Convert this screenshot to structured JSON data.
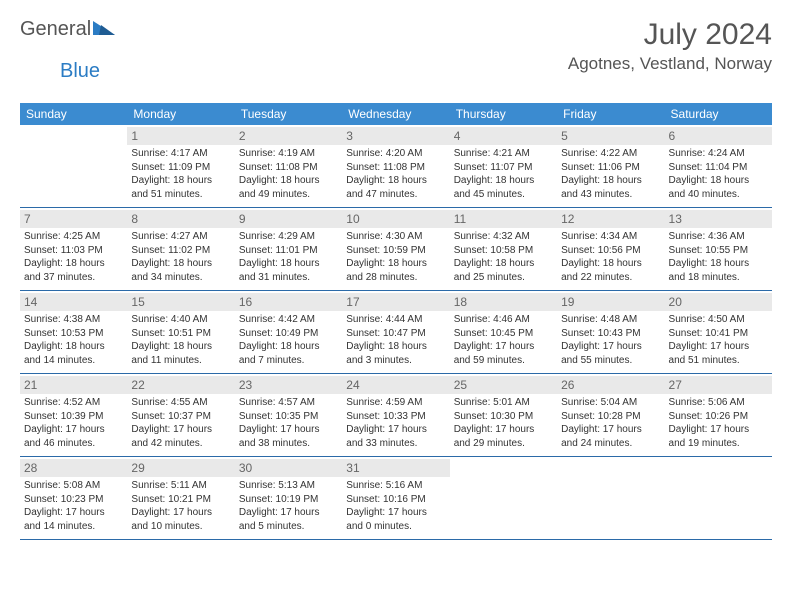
{
  "brand": {
    "name1": "General",
    "name2": "Blue"
  },
  "title": "July 2024",
  "location": "Agotnes, Vestland, Norway",
  "colors": {
    "header_bg": "#3b8bd0",
    "header_text": "#ffffff",
    "divider": "#2b6aa8",
    "daynum_bg": "#e9e9e9",
    "daynum_text": "#666666",
    "body_text": "#333333",
    "title_text": "#555555",
    "logo_blue": "#2b7cc4"
  },
  "days_of_week": [
    "Sunday",
    "Monday",
    "Tuesday",
    "Wednesday",
    "Thursday",
    "Friday",
    "Saturday"
  ],
  "weeks": [
    [
      {
        "n": "",
        "sr": "",
        "ss": "",
        "dl": ""
      },
      {
        "n": "1",
        "sr": "Sunrise: 4:17 AM",
        "ss": "Sunset: 11:09 PM",
        "dl": "Daylight: 18 hours and 51 minutes."
      },
      {
        "n": "2",
        "sr": "Sunrise: 4:19 AM",
        "ss": "Sunset: 11:08 PM",
        "dl": "Daylight: 18 hours and 49 minutes."
      },
      {
        "n": "3",
        "sr": "Sunrise: 4:20 AM",
        "ss": "Sunset: 11:08 PM",
        "dl": "Daylight: 18 hours and 47 minutes."
      },
      {
        "n": "4",
        "sr": "Sunrise: 4:21 AM",
        "ss": "Sunset: 11:07 PM",
        "dl": "Daylight: 18 hours and 45 minutes."
      },
      {
        "n": "5",
        "sr": "Sunrise: 4:22 AM",
        "ss": "Sunset: 11:06 PM",
        "dl": "Daylight: 18 hours and 43 minutes."
      },
      {
        "n": "6",
        "sr": "Sunrise: 4:24 AM",
        "ss": "Sunset: 11:04 PM",
        "dl": "Daylight: 18 hours and 40 minutes."
      }
    ],
    [
      {
        "n": "7",
        "sr": "Sunrise: 4:25 AM",
        "ss": "Sunset: 11:03 PM",
        "dl": "Daylight: 18 hours and 37 minutes."
      },
      {
        "n": "8",
        "sr": "Sunrise: 4:27 AM",
        "ss": "Sunset: 11:02 PM",
        "dl": "Daylight: 18 hours and 34 minutes."
      },
      {
        "n": "9",
        "sr": "Sunrise: 4:29 AM",
        "ss": "Sunset: 11:01 PM",
        "dl": "Daylight: 18 hours and 31 minutes."
      },
      {
        "n": "10",
        "sr": "Sunrise: 4:30 AM",
        "ss": "Sunset: 10:59 PM",
        "dl": "Daylight: 18 hours and 28 minutes."
      },
      {
        "n": "11",
        "sr": "Sunrise: 4:32 AM",
        "ss": "Sunset: 10:58 PM",
        "dl": "Daylight: 18 hours and 25 minutes."
      },
      {
        "n": "12",
        "sr": "Sunrise: 4:34 AM",
        "ss": "Sunset: 10:56 PM",
        "dl": "Daylight: 18 hours and 22 minutes."
      },
      {
        "n": "13",
        "sr": "Sunrise: 4:36 AM",
        "ss": "Sunset: 10:55 PM",
        "dl": "Daylight: 18 hours and 18 minutes."
      }
    ],
    [
      {
        "n": "14",
        "sr": "Sunrise: 4:38 AM",
        "ss": "Sunset: 10:53 PM",
        "dl": "Daylight: 18 hours and 14 minutes."
      },
      {
        "n": "15",
        "sr": "Sunrise: 4:40 AM",
        "ss": "Sunset: 10:51 PM",
        "dl": "Daylight: 18 hours and 11 minutes."
      },
      {
        "n": "16",
        "sr": "Sunrise: 4:42 AM",
        "ss": "Sunset: 10:49 PM",
        "dl": "Daylight: 18 hours and 7 minutes."
      },
      {
        "n": "17",
        "sr": "Sunrise: 4:44 AM",
        "ss": "Sunset: 10:47 PM",
        "dl": "Daylight: 18 hours and 3 minutes."
      },
      {
        "n": "18",
        "sr": "Sunrise: 4:46 AM",
        "ss": "Sunset: 10:45 PM",
        "dl": "Daylight: 17 hours and 59 minutes."
      },
      {
        "n": "19",
        "sr": "Sunrise: 4:48 AM",
        "ss": "Sunset: 10:43 PM",
        "dl": "Daylight: 17 hours and 55 minutes."
      },
      {
        "n": "20",
        "sr": "Sunrise: 4:50 AM",
        "ss": "Sunset: 10:41 PM",
        "dl": "Daylight: 17 hours and 51 minutes."
      }
    ],
    [
      {
        "n": "21",
        "sr": "Sunrise: 4:52 AM",
        "ss": "Sunset: 10:39 PM",
        "dl": "Daylight: 17 hours and 46 minutes."
      },
      {
        "n": "22",
        "sr": "Sunrise: 4:55 AM",
        "ss": "Sunset: 10:37 PM",
        "dl": "Daylight: 17 hours and 42 minutes."
      },
      {
        "n": "23",
        "sr": "Sunrise: 4:57 AM",
        "ss": "Sunset: 10:35 PM",
        "dl": "Daylight: 17 hours and 38 minutes."
      },
      {
        "n": "24",
        "sr": "Sunrise: 4:59 AM",
        "ss": "Sunset: 10:33 PM",
        "dl": "Daylight: 17 hours and 33 minutes."
      },
      {
        "n": "25",
        "sr": "Sunrise: 5:01 AM",
        "ss": "Sunset: 10:30 PM",
        "dl": "Daylight: 17 hours and 29 minutes."
      },
      {
        "n": "26",
        "sr": "Sunrise: 5:04 AM",
        "ss": "Sunset: 10:28 PM",
        "dl": "Daylight: 17 hours and 24 minutes."
      },
      {
        "n": "27",
        "sr": "Sunrise: 5:06 AM",
        "ss": "Sunset: 10:26 PM",
        "dl": "Daylight: 17 hours and 19 minutes."
      }
    ],
    [
      {
        "n": "28",
        "sr": "Sunrise: 5:08 AM",
        "ss": "Sunset: 10:23 PM",
        "dl": "Daylight: 17 hours and 14 minutes."
      },
      {
        "n": "29",
        "sr": "Sunrise: 5:11 AM",
        "ss": "Sunset: 10:21 PM",
        "dl": "Daylight: 17 hours and 10 minutes."
      },
      {
        "n": "30",
        "sr": "Sunrise: 5:13 AM",
        "ss": "Sunset: 10:19 PM",
        "dl": "Daylight: 17 hours and 5 minutes."
      },
      {
        "n": "31",
        "sr": "Sunrise: 5:16 AM",
        "ss": "Sunset: 10:16 PM",
        "dl": "Daylight: 17 hours and 0 minutes."
      },
      {
        "n": "",
        "sr": "",
        "ss": "",
        "dl": ""
      },
      {
        "n": "",
        "sr": "",
        "ss": "",
        "dl": ""
      },
      {
        "n": "",
        "sr": "",
        "ss": "",
        "dl": ""
      }
    ]
  ]
}
